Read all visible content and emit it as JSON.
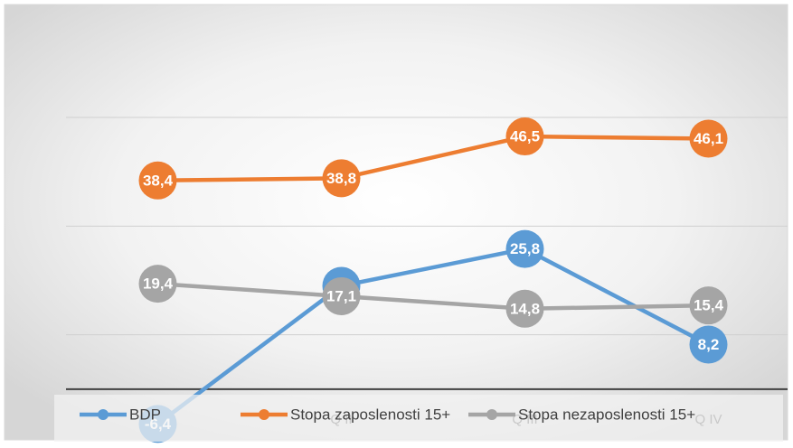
{
  "chart_data": {
    "type": "line",
    "categories": [
      "Q I",
      "Q II",
      "Q III",
      "Q IV"
    ],
    "series": [
      {
        "name": "BDP",
        "color": "#5b9bd5",
        "values": [
          -6.4,
          19,
          25.8,
          8.2
        ],
        "value_labels": [
          "-6,4",
          "19",
          "25,8",
          "8,2"
        ]
      },
      {
        "name": "Stopa zaposlenosti 15+",
        "color": "#ed7d31",
        "values": [
          38.4,
          38.8,
          46.5,
          46.1
        ],
        "value_labels": [
          "38,4",
          "38,8",
          "46,5",
          "46,1"
        ]
      },
      {
        "name": "Stopa nezaposlenosti 15+",
        "color": "#a5a5a5",
        "values": [
          19.4,
          17.1,
          14.8,
          15.4
        ],
        "value_labels": [
          "19,4",
          "17,1",
          "14,8",
          "15,4"
        ]
      }
    ],
    "ylim": [
      -10,
      50
    ],
    "yticks": [
      10,
      30,
      50
    ],
    "grid": true,
    "legend": "bottom"
  }
}
